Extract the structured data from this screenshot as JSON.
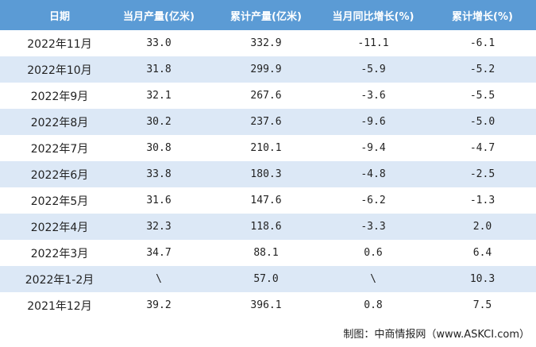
{
  "table": {
    "headers": [
      "日期",
      "当月产量(亿米)",
      "累计产量(亿米)",
      "当月同比增长(%)",
      "累计增长(%)"
    ],
    "rows": [
      [
        "2022年11月",
        "33.0",
        "332.9",
        "-11.1",
        "-6.1"
      ],
      [
        "2022年10月",
        "31.8",
        "299.9",
        "-5.9",
        "-5.2"
      ],
      [
        "2022年9月",
        "32.1",
        "267.6",
        "-3.6",
        "-5.5"
      ],
      [
        "2022年8月",
        "30.2",
        "237.6",
        "-9.6",
        "-5.0"
      ],
      [
        "2022年7月",
        "30.8",
        "210.1",
        "-9.4",
        "-4.7"
      ],
      [
        "2022年6月",
        "33.8",
        "180.3",
        "-4.8",
        "-2.5"
      ],
      [
        "2022年5月",
        "31.6",
        "147.6",
        "-6.2",
        "-1.3"
      ],
      [
        "2022年4月",
        "32.3",
        "118.6",
        "-3.3",
        "2.0"
      ],
      [
        "2022年3月",
        "34.7",
        "88.1",
        "0.6",
        "6.4"
      ],
      [
        "2022年1-2月",
        "\\",
        "57.0",
        "\\",
        "10.3"
      ],
      [
        "2021年12月",
        "39.2",
        "396.1",
        "0.8",
        "7.5"
      ]
    ]
  },
  "footer": "制图：中商情报网（www.ASKCI.com）"
}
